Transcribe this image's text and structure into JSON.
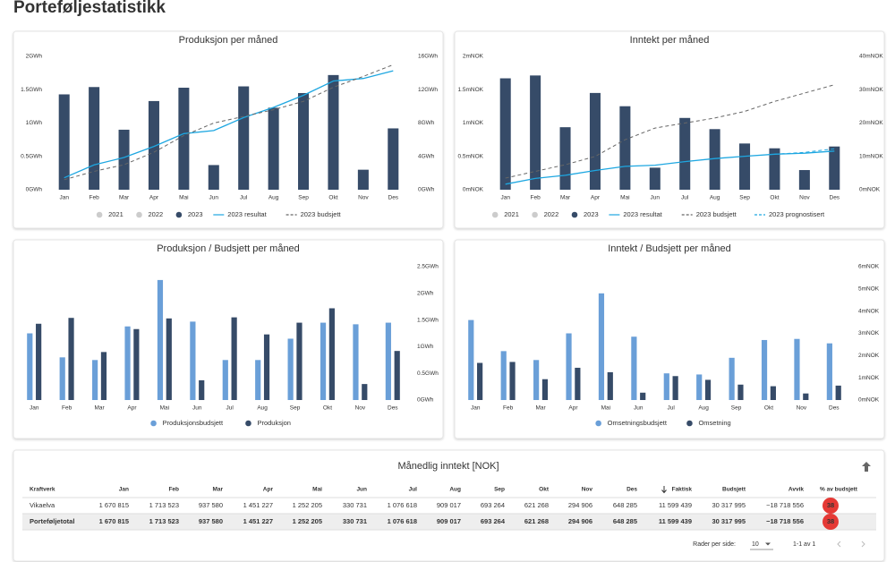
{
  "page_title": "Porteføljestatistikk",
  "chart_data": [
    {
      "type": "bar",
      "title": "Produksjon per måned",
      "categories": [
        "Jan",
        "Feb",
        "Mar",
        "Apr",
        "Mai",
        "Jun",
        "Jul",
        "Aug",
        "Sep",
        "Okt",
        "Nov",
        "Des"
      ],
      "ylim": [
        0,
        2
      ],
      "yticks": [
        {
          "value": 0,
          "label": "0GWh"
        },
        {
          "value": 0.5,
          "label": "0.5GWh"
        },
        {
          "value": 1,
          "label": "1GWh"
        },
        {
          "value": 1.5,
          "label": "1.5GWh"
        },
        {
          "value": 2,
          "label": "2GWh"
        }
      ],
      "y2lim": [
        0,
        16
      ],
      "y2ticks": [
        {
          "value": 0,
          "label": "0GWh"
        },
        {
          "value": 4,
          "label": "4GWh"
        },
        {
          "value": 8,
          "label": "8GWh"
        },
        {
          "value": 12,
          "label": "12GWh"
        },
        {
          "value": 16,
          "label": "16GWh"
        }
      ],
      "series": [
        {
          "name": "2021",
          "type": "bar",
          "hidden": true,
          "color": "#cccccc",
          "values": [
            null,
            null,
            null,
            null,
            null,
            null,
            null,
            null,
            null,
            null,
            null,
            null
          ]
        },
        {
          "name": "2022",
          "type": "bar",
          "hidden": true,
          "color": "#cccccc",
          "values": [
            null,
            null,
            null,
            null,
            null,
            null,
            null,
            null,
            null,
            null,
            null,
            null
          ]
        },
        {
          "name": "2023",
          "type": "bar",
          "color": "#364b68",
          "values": [
            1.43,
            1.54,
            0.9,
            1.33,
            1.53,
            0.37,
            1.55,
            1.23,
            1.45,
            1.72,
            0.3,
            0.92
          ]
        },
        {
          "name": "2023 resultat",
          "type": "line",
          "axis": "y2",
          "color": "#1ea7e1",
          "values": [
            1.43,
            2.97,
            3.87,
            5.2,
            6.73,
            7.1,
            8.65,
            9.88,
            11.33,
            13.05,
            13.35,
            14.27
          ]
        },
        {
          "name": "2023 budsjett",
          "type": "line",
          "axis": "y2",
          "dash": true,
          "color": "#666666",
          "values": [
            1.2,
            2.2,
            3.0,
            4.5,
            6.5,
            8.0,
            8.8,
            9.6,
            10.6,
            12.3,
            13.6,
            15.0
          ]
        }
      ]
    },
    {
      "type": "bar",
      "title": "Inntekt per måned",
      "categories": [
        "Jan",
        "Feb",
        "Mar",
        "Apr",
        "Mai",
        "Jun",
        "Jul",
        "Aug",
        "Sep",
        "Okt",
        "Nov",
        "Des"
      ],
      "ylim": [
        0,
        2
      ],
      "yticks": [
        {
          "value": 0,
          "label": "0mNOK"
        },
        {
          "value": 0.5,
          "label": "0.5mNOK"
        },
        {
          "value": 1,
          "label": "1mNOK"
        },
        {
          "value": 1.5,
          "label": "1.5mNOK"
        },
        {
          "value": 2,
          "label": "2mNOK"
        }
      ],
      "y2lim": [
        0,
        40
      ],
      "y2ticks": [
        {
          "value": 0,
          "label": "0mNOK"
        },
        {
          "value": 10,
          "label": "10mNOK"
        },
        {
          "value": 20,
          "label": "20mNOK"
        },
        {
          "value": 30,
          "label": "30mNOK"
        },
        {
          "value": 40,
          "label": "40mNOK"
        }
      ],
      "series": [
        {
          "name": "2021",
          "type": "bar",
          "hidden": true,
          "color": "#cccccc",
          "values": [
            null,
            null,
            null,
            null,
            null,
            null,
            null,
            null,
            null,
            null,
            null,
            null
          ]
        },
        {
          "name": "2022",
          "type": "bar",
          "hidden": true,
          "color": "#cccccc",
          "values": [
            null,
            null,
            null,
            null,
            null,
            null,
            null,
            null,
            null,
            null,
            null,
            null
          ]
        },
        {
          "name": "2023",
          "type": "bar",
          "color": "#364b68",
          "values": [
            1.670815,
            1.713523,
            0.93758,
            1.451227,
            1.252205,
            0.330731,
            1.076618,
            0.909017,
            0.693264,
            0.621268,
            0.294906,
            0.648285
          ]
        },
        {
          "name": "2023 resultat",
          "type": "line",
          "axis": "y2",
          "color": "#1ea7e1",
          "values": [
            1.67,
            3.38,
            4.32,
            5.77,
            7.02,
            7.36,
            8.43,
            9.34,
            10.03,
            10.66,
            10.95,
            11.6
          ]
        },
        {
          "name": "2023 budsjett",
          "type": "line",
          "axis": "y2",
          "dash": true,
          "color": "#666666",
          "values": [
            3.5,
            5.5,
            7.5,
            10,
            15,
            18.5,
            20,
            21.5,
            23.5,
            26.5,
            29,
            31.5
          ]
        },
        {
          "name": "2023 prognostisert",
          "type": "line",
          "axis": "y2",
          "dash": true,
          "color": "#1ea7e1",
          "values": [
            null,
            null,
            null,
            null,
            null,
            null,
            null,
            null,
            null,
            10.66,
            11.2,
            12.3
          ]
        }
      ]
    },
    {
      "type": "bar",
      "title": "Produksjon / Budsjett per måned",
      "yaxis": "right",
      "categories": [
        "Jan",
        "Feb",
        "Mar",
        "Apr",
        "Mai",
        "Jun",
        "Jul",
        "Aug",
        "Sep",
        "Okt",
        "Nov",
        "Des"
      ],
      "ylim": [
        0,
        2.5
      ],
      "yticks": [
        {
          "value": 0,
          "label": "0GWh"
        },
        {
          "value": 0.5,
          "label": "0.5GWh"
        },
        {
          "value": 1,
          "label": "1GWh"
        },
        {
          "value": 1.5,
          "label": "1.5GWh"
        },
        {
          "value": 2,
          "label": "2GWh"
        },
        {
          "value": 2.5,
          "label": "2.5GWh"
        }
      ],
      "series": [
        {
          "name": "Produksjonsbudsjett",
          "type": "bar",
          "color": "#6a9fd8",
          "values": [
            1.25,
            0.8,
            0.75,
            1.38,
            2.25,
            1.47,
            0.75,
            0.75,
            1.15,
            1.45,
            1.42,
            1.45
          ]
        },
        {
          "name": "Produksjon",
          "type": "bar",
          "color": "#364b68",
          "values": [
            1.43,
            1.54,
            0.9,
            1.33,
            1.53,
            0.37,
            1.55,
            1.23,
            1.45,
            1.72,
            0.3,
            0.92
          ]
        }
      ]
    },
    {
      "type": "bar",
      "title": "Inntekt / Budsjett per måned",
      "yaxis": "right",
      "categories": [
        "Jan",
        "Feb",
        "Mar",
        "Apr",
        "Mai",
        "Jun",
        "Jul",
        "Aug",
        "Sep",
        "Okt",
        "Nov",
        "Des"
      ],
      "ylim": [
        0,
        6
      ],
      "yticks": [
        {
          "value": 0,
          "label": "0mNOK"
        },
        {
          "value": 1,
          "label": "1mNOK"
        },
        {
          "value": 2,
          "label": "2mNOK"
        },
        {
          "value": 3,
          "label": "3mNOK"
        },
        {
          "value": 4,
          "label": "4mNOK"
        },
        {
          "value": 5,
          "label": "5mNOK"
        },
        {
          "value": 6,
          "label": "6mNOK"
        }
      ],
      "series": [
        {
          "name": "Omsetningsbudsjett",
          "type": "bar",
          "color": "#6a9fd8",
          "values": [
            3.6,
            2.2,
            1.8,
            3.0,
            4.8,
            2.85,
            1.2,
            1.15,
            1.9,
            2.7,
            2.75,
            2.55
          ]
        },
        {
          "name": "Omsetning",
          "type": "bar",
          "color": "#364b68",
          "values": [
            1.670815,
            1.713523,
            0.93758,
            1.451227,
            1.252205,
            0.330731,
            1.076618,
            0.909017,
            0.693264,
            0.621268,
            0.294906,
            0.648285
          ]
        }
      ]
    }
  ],
  "table": {
    "title": "Månedlig inntekt [NOK]",
    "columns": [
      "Kraftverk",
      "Jan",
      "Feb",
      "Mar",
      "Apr",
      "Mai",
      "Jun",
      "Jul",
      "Aug",
      "Sep",
      "Okt",
      "Nov",
      "Des",
      "Faktisk",
      "Budsjett",
      "Avvik",
      "% av budsjett"
    ],
    "rows": [
      [
        "Vikaelva",
        "1 670 815",
        "1 713 523",
        "937 580",
        "1 451 227",
        "1 252 205",
        "330 731",
        "1 076 618",
        "909 017",
        "693 264",
        "621 268",
        "294 906",
        "648 285",
        "11 599 439",
        "30 317 995",
        "−18 718 556",
        "38"
      ],
      [
        "Porteføljetotal",
        "1 670 815",
        "1 713 523",
        "937 580",
        "1 451 227",
        "1 252 205",
        "330 731",
        "1 076 618",
        "909 017",
        "693 264",
        "621 268",
        "294 906",
        "648 285",
        "11 599 439",
        "30 317 995",
        "−18 718 556",
        "38"
      ]
    ],
    "footer": {
      "rows_per_page_label": "Rader per side:",
      "rows_per_page": "10",
      "range": "1-1 av 1"
    }
  }
}
